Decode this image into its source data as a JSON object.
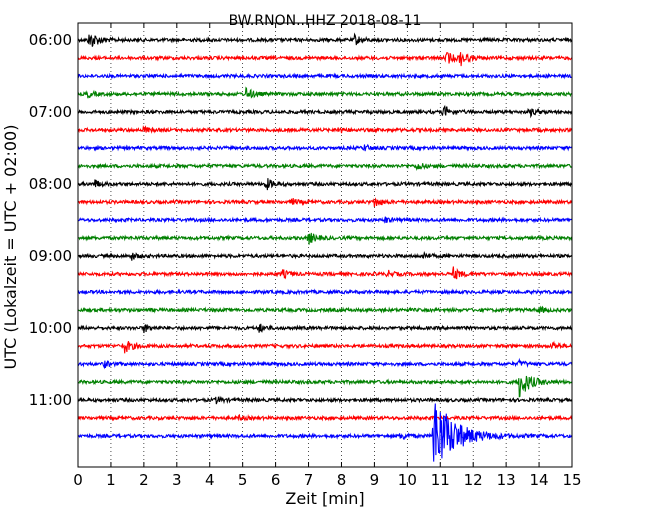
{
  "chart_data": {
    "type": "line",
    "title": "BW.RNON..HHZ 2018-08-11",
    "xlabel": "Zeit  [min]",
    "ylabel": "UTC (Lokalzeit = UTC + 02:00)",
    "xlim": [
      0,
      15
    ],
    "x_ticks": [
      "0",
      "1",
      "2",
      "3",
      "4",
      "5",
      "6",
      "7",
      "8",
      "9",
      "10",
      "11",
      "12",
      "13",
      "14",
      "15"
    ],
    "y_tick_labels": [
      "06:00",
      "07:00",
      "08:00",
      "09:00",
      "10:00",
      "11:00"
    ],
    "grid": "vertical dotted",
    "trace_colors": [
      "#000000",
      "#ff0000",
      "#0000ff",
      "#008000"
    ],
    "traces": [
      {
        "start": "06:00",
        "events": [
          {
            "t": 0.35,
            "amp": 9
          },
          {
            "t": 8.4,
            "amp": 5
          }
        ]
      },
      {
        "start": "06:15",
        "events": [
          {
            "t": 11.2,
            "amp": 6
          },
          {
            "t": 11.6,
            "amp": 7
          }
        ]
      },
      {
        "start": "06:30",
        "events": []
      },
      {
        "start": "06:45",
        "events": [
          {
            "t": 5.1,
            "amp": 6
          },
          {
            "t": 0.3,
            "amp": 3
          }
        ]
      },
      {
        "start": "07:00",
        "events": [
          {
            "t": 11.1,
            "amp": 6
          },
          {
            "t": 13.7,
            "amp": 4
          }
        ]
      },
      {
        "start": "07:15",
        "events": [
          {
            "t": 2.0,
            "amp": 3
          },
          {
            "t": 7.9,
            "amp": 3
          }
        ]
      },
      {
        "start": "07:30",
        "events": [
          {
            "t": 8.7,
            "amp": 3
          }
        ]
      },
      {
        "start": "07:45",
        "events": [
          {
            "t": 10.3,
            "amp": 4
          }
        ]
      },
      {
        "start": "08:00",
        "events": [
          {
            "t": 0.5,
            "amp": 4
          },
          {
            "t": 5.7,
            "amp": 6
          }
        ]
      },
      {
        "start": "08:15",
        "events": [
          {
            "t": 9.0,
            "amp": 5
          },
          {
            "t": 6.5,
            "amp": 3
          }
        ]
      },
      {
        "start": "08:30",
        "events": [
          {
            "t": 9.3,
            "amp": 3
          }
        ]
      },
      {
        "start": "08:45",
        "events": [
          {
            "t": 7.0,
            "amp": 6
          }
        ]
      },
      {
        "start": "09:00",
        "events": [
          {
            "t": 1.6,
            "amp": 4
          },
          {
            "t": 10.5,
            "amp": 3
          }
        ]
      },
      {
        "start": "09:15",
        "events": [
          {
            "t": 6.2,
            "amp": 4
          },
          {
            "t": 11.4,
            "amp": 6
          },
          {
            "t": 9.4,
            "amp": 3
          }
        ]
      },
      {
        "start": "09:30",
        "events": []
      },
      {
        "start": "09:45",
        "events": [
          {
            "t": 14.0,
            "amp": 3
          }
        ]
      },
      {
        "start": "10:00",
        "events": [
          {
            "t": 2.0,
            "amp": 4
          },
          {
            "t": 5.5,
            "amp": 4
          }
        ]
      },
      {
        "start": "10:15",
        "events": [
          {
            "t": 1.4,
            "amp": 7
          },
          {
            "t": 14.4,
            "amp": 4
          }
        ]
      },
      {
        "start": "10:30",
        "events": [
          {
            "t": 0.8,
            "amp": 3
          },
          {
            "t": 13.4,
            "amp": 3
          }
        ]
      },
      {
        "start": "10:45",
        "events": [
          {
            "t": 13.4,
            "amp": 15
          }
        ]
      },
      {
        "start": "11:00",
        "events": [
          {
            "t": 4.2,
            "amp": 3
          }
        ]
      },
      {
        "start": "11:15",
        "events": [
          {
            "t": 4.9,
            "amp": 2
          }
        ]
      },
      {
        "start": "11:30",
        "events": [
          {
            "t": 10.8,
            "amp": 40
          },
          {
            "t": 9.8,
            "amp": 4
          }
        ]
      }
    ]
  }
}
